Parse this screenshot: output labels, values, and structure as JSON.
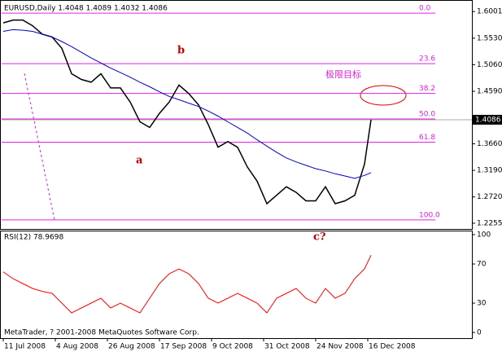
{
  "chart_data": [
    {
      "type": "line",
      "title": "EURUSD,Daily  1.4048 1.4089 1.4032 1.4086",
      "xlim": [
        -1,
        144
      ],
      "xticks": [
        {
          "value": 0,
          "label": "11 Jul 2008"
        },
        {
          "value": 16,
          "label": "4 Aug 2008"
        },
        {
          "value": 32,
          "label": "26 Aug 2008"
        },
        {
          "value": 48,
          "label": "17 Sep 2008"
        },
        {
          "value": 64,
          "label": "9 Oct 2008"
        },
        {
          "value": 80,
          "label": "31 Oct 2008"
        },
        {
          "value": 96,
          "label": "24 Nov 2008"
        },
        {
          "value": 112,
          "label": "16 Dec 2008"
        }
      ],
      "ylim": [
        1.2153,
        1.6191
      ],
      "yticks": [
        1.6001,
        {
          "value": 1.553,
          "label": "1.5530"
        },
        {
          "value": 1.506,
          "label": "1.5060"
        },
        {
          "value": 1.459,
          "label": "1.4590"
        },
        {
          "value": 1.366,
          "label": "1.3660"
        },
        {
          "value": 1.319,
          "label": "1.3190"
        },
        {
          "value": 1.272,
          "label": "1.2720"
        },
        1.2255
      ],
      "current_price": 1.4086,
      "x": [
        0,
        3,
        6,
        9,
        12,
        15,
        18,
        21,
        24,
        27,
        30,
        33,
        36,
        39,
        42,
        45,
        48,
        51,
        54,
        57,
        60,
        63,
        66,
        69,
        72,
        75,
        78,
        81,
        84,
        87,
        90,
        93,
        96,
        99,
        102,
        105,
        108,
        111,
        113
      ],
      "series": [
        {
          "name": "Close",
          "color": "#000000",
          "values": [
            1.58,
            1.585,
            1.585,
            1.575,
            1.56,
            1.555,
            1.535,
            1.49,
            1.48,
            1.475,
            1.49,
            1.465,
            1.465,
            1.44,
            1.405,
            1.395,
            1.42,
            1.44,
            1.47,
            1.455,
            1.435,
            1.4,
            1.36,
            1.37,
            1.36,
            1.325,
            1.3,
            1.26,
            1.275,
            1.29,
            1.28,
            1.265,
            1.265,
            1.29,
            1.26,
            1.265,
            1.275,
            1.33,
            1.4086
          ]
        },
        {
          "name": "MA",
          "color": "#0000c0",
          "values": [
            1.565,
            1.568,
            1.567,
            1.565,
            1.56,
            1.555,
            1.547,
            1.538,
            1.528,
            1.518,
            1.509,
            1.5,
            1.492,
            1.484,
            1.475,
            1.467,
            1.458,
            1.45,
            1.444,
            1.438,
            1.432,
            1.424,
            1.415,
            1.405,
            1.395,
            1.385,
            1.373,
            1.362,
            1.351,
            1.341,
            1.334,
            1.328,
            1.322,
            1.318,
            1.313,
            1.309,
            1.305,
            1.31,
            1.315
          ]
        }
      ],
      "fib_levels": [
        {
          "label": "0.0",
          "price": 1.5972
        },
        {
          "label": "23.6",
          "price": 1.5079
        },
        {
          "label": "38.2",
          "price": 1.4552
        },
        {
          "label": "50.0",
          "price": 1.4099
        },
        {
          "label": "61.8",
          "price": 1.3689
        },
        {
          "label": "100.0",
          "price": 1.2314
        }
      ],
      "annotations": [
        "a",
        "b",
        "c?",
        "极限目标"
      ]
    },
    {
      "type": "line",
      "title": "RSI(12) 78.9698",
      "ylim": [
        -5.8,
        103.3
      ],
      "yticks": [
        100,
        70,
        30,
        0
      ],
      "series": [
        {
          "name": "RSI",
          "color": "#ff0000",
          "values": [
            62,
            55,
            50,
            45,
            42,
            40,
            30,
            20,
            25,
            30,
            35,
            25,
            30,
            25,
            20,
            35,
            50,
            60,
            65,
            60,
            50,
            35,
            30,
            35,
            40,
            35,
            30,
            20,
            35,
            40,
            45,
            35,
            30,
            45,
            35,
            40,
            55,
            65,
            79
          ]
        }
      ],
      "annotations": [
        "MetaTrader, ? 2001-2008 MetaQuotes Software Corp."
      ]
    }
  ]
}
